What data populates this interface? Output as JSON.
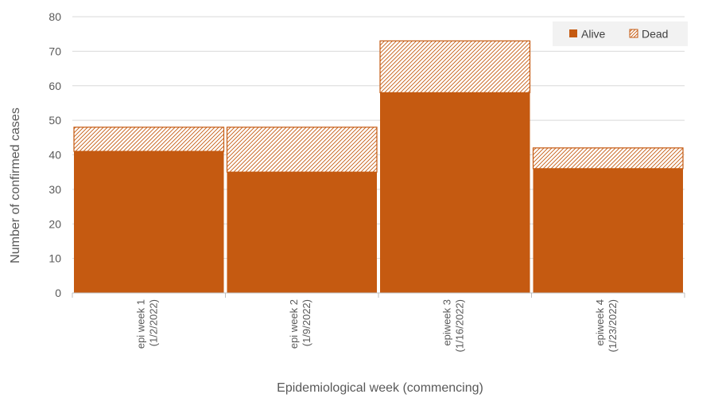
{
  "chart_data": {
    "type": "bar",
    "stacked": true,
    "categories": [
      [
        "epi week 1",
        "(1/2/2022)"
      ],
      [
        "epi week 2",
        "(1/9/2022)"
      ],
      [
        "epiweek 3",
        "(1/16/2022)"
      ],
      [
        "epiweek 4",
        "(1/23/2022)"
      ]
    ],
    "series": [
      {
        "name": "Alive",
        "values": [
          41,
          35,
          58,
          36
        ],
        "color": "#C55A11",
        "pattern": "solid"
      },
      {
        "name": "Dead",
        "values": [
          7,
          13,
          15,
          6
        ],
        "color": "#C55A11",
        "pattern": "hatch"
      }
    ],
    "title": "",
    "xlabel": "Epidemiological week (commencing)",
    "ylabel": "Number of confirmed cases",
    "ylim": [
      0,
      80
    ],
    "yticks": [
      0,
      10,
      20,
      30,
      40,
      50,
      60,
      70,
      80
    ],
    "grid": true,
    "legend": "top-right"
  }
}
